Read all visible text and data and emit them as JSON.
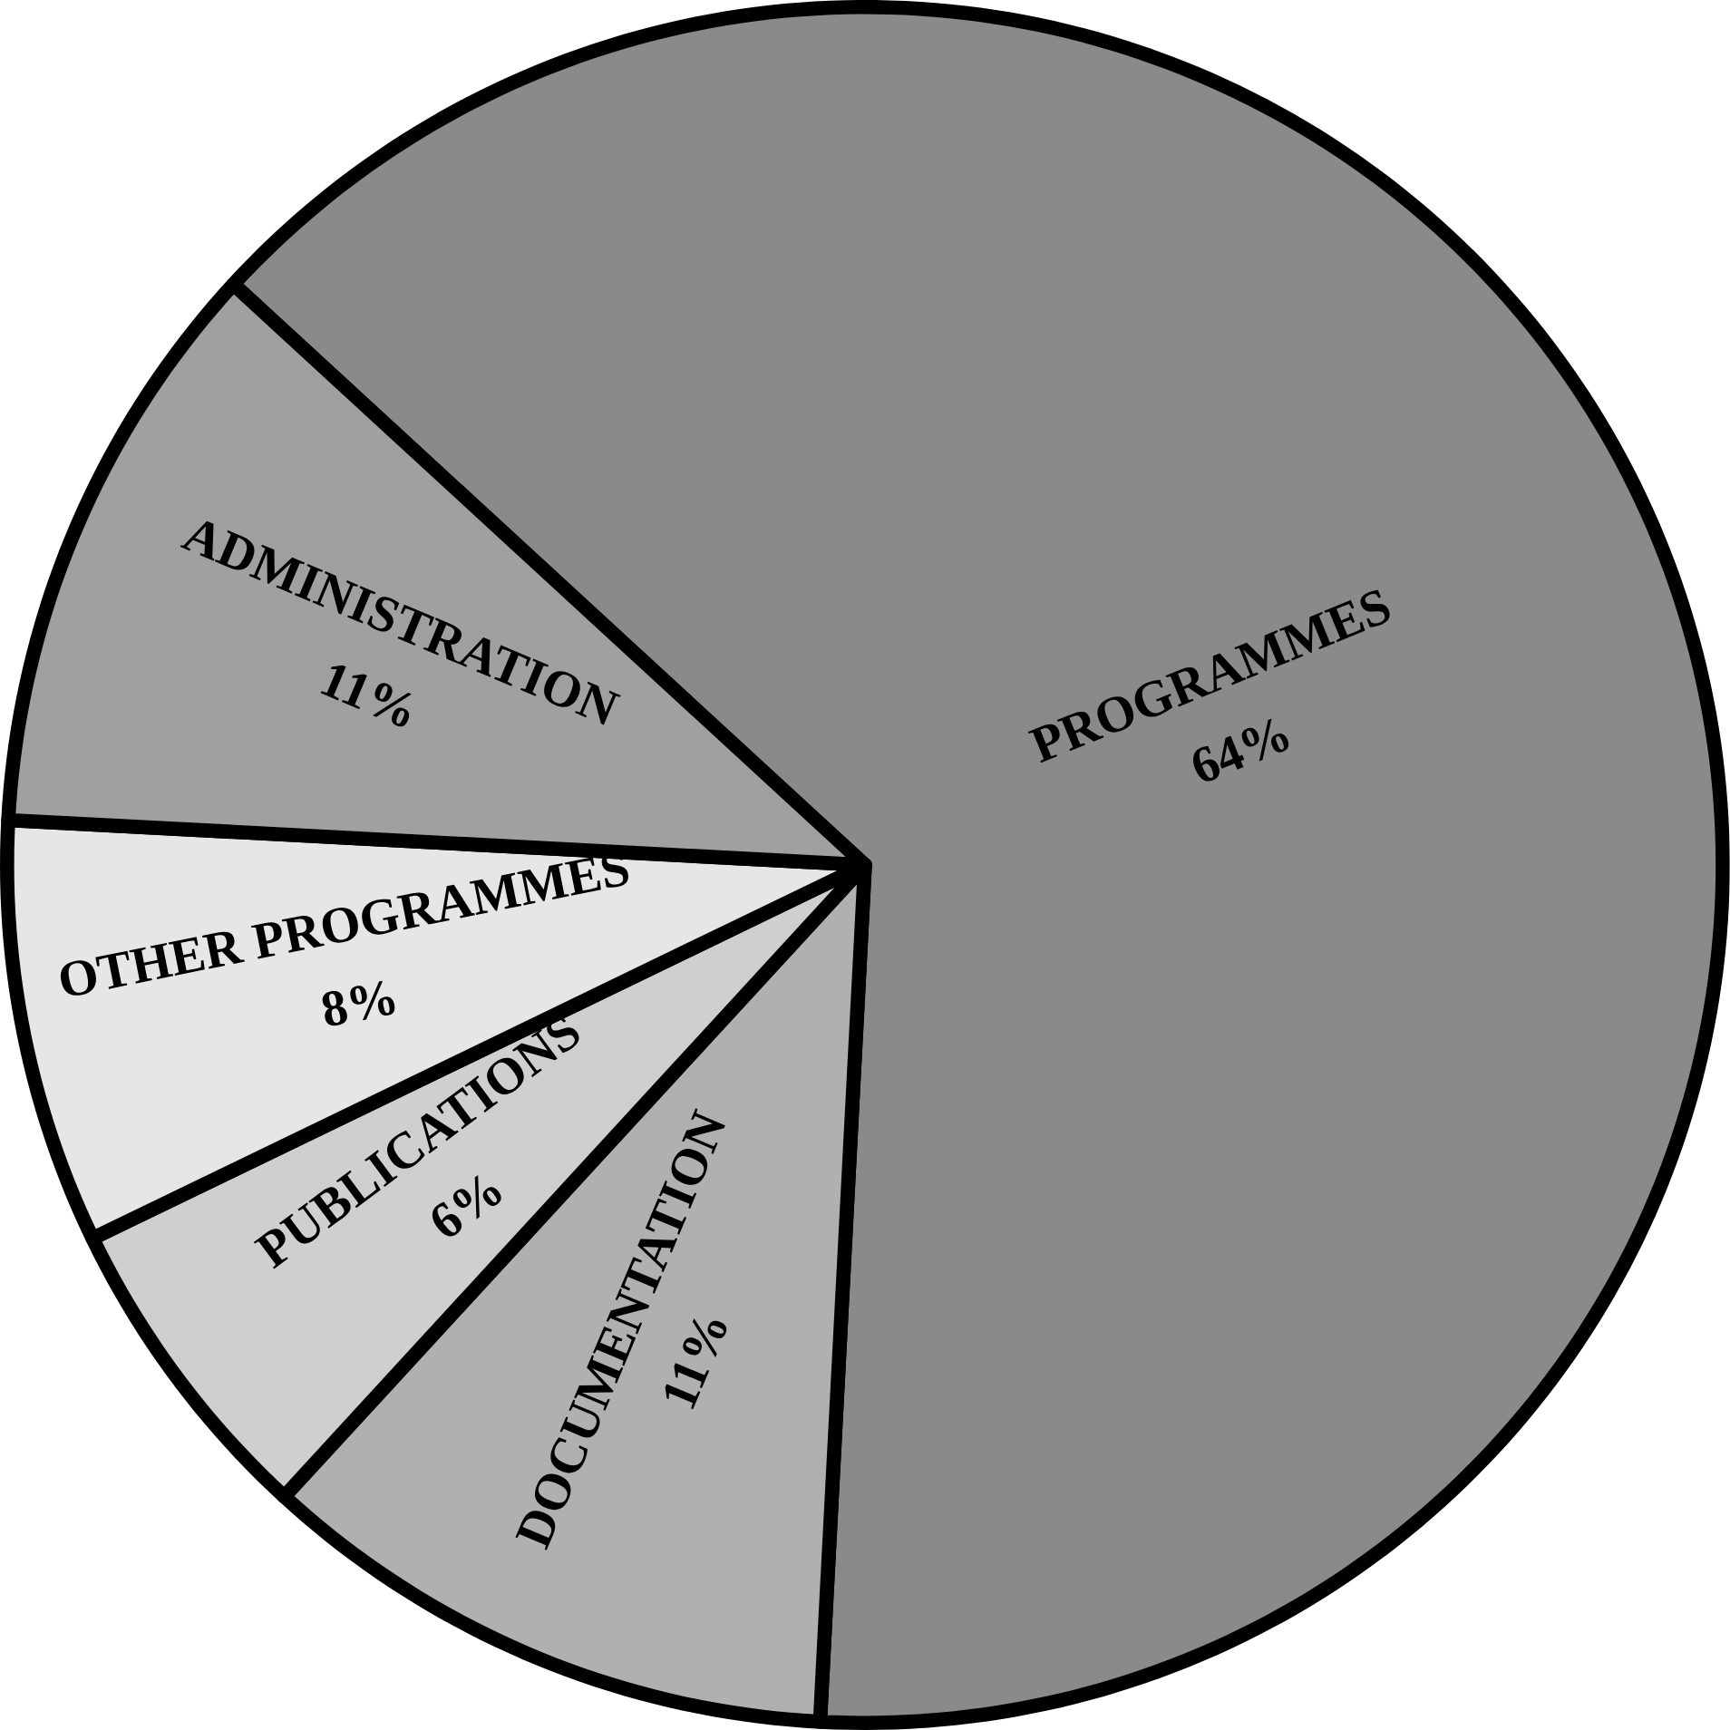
{
  "chart_data": {
    "type": "pie",
    "categories": [
      "PROGRAMMES",
      "DOCUMENTATION",
      "PUBLICATIONS",
      "OTHER PROGRAMMES",
      "ADMINISTRATION"
    ],
    "values": [
      64,
      11,
      6,
      8,
      11
    ],
    "value_labels": [
      "64%",
      "11%",
      "6%",
      "8%",
      "11%"
    ],
    "colors": [
      "#8a8a8a",
      "#b0b0b0",
      "#cfcfcf",
      "#e6e6e6",
      "#a0a0a0"
    ]
  }
}
